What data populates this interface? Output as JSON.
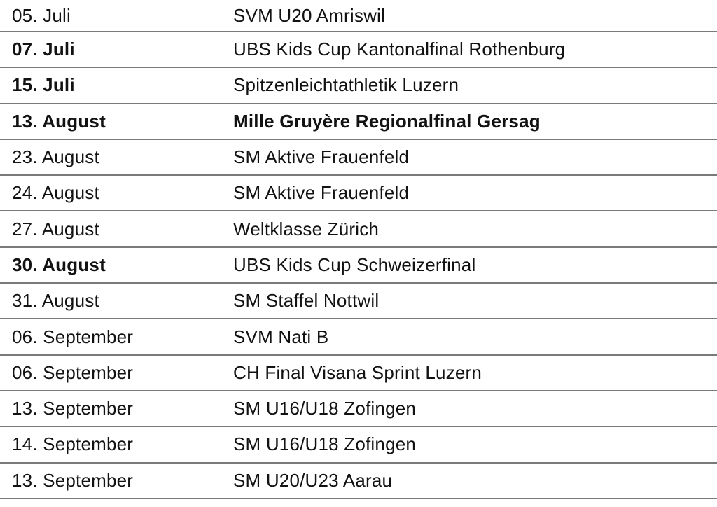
{
  "table": {
    "text_color": "#121212",
    "line_color": "#7a7a7a",
    "columns": [
      "date",
      "event"
    ],
    "rows": [
      {
        "date": "05. Juli",
        "event": "SVM U20 Amriswil",
        "date_bold": false,
        "event_bold": false
      },
      {
        "date": "07. Juli",
        "event": "UBS Kids Cup Kantonalfinal Rothenburg",
        "date_bold": true,
        "event_bold": false
      },
      {
        "date": "15. Juli",
        "event": "Spitzenleichtathletik Luzern",
        "date_bold": true,
        "event_bold": false
      },
      {
        "date": "13. August",
        "event": "Mille Gruyère Regionalfinal Gersag",
        "date_bold": true,
        "event_bold": true
      },
      {
        "date": "23. August",
        "event": "SM Aktive Frauenfeld",
        "date_bold": false,
        "event_bold": false
      },
      {
        "date": "24. August",
        "event": "SM Aktive Frauenfeld",
        "date_bold": false,
        "event_bold": false
      },
      {
        "date": "27. August",
        "event": "Weltklasse Zürich",
        "date_bold": false,
        "event_bold": false
      },
      {
        "date": "30. August",
        "event": "UBS Kids Cup Schweizerfinal",
        "date_bold": true,
        "event_bold": false
      },
      {
        "date": "31. August",
        "event": "SM Staffel Nottwil",
        "date_bold": false,
        "event_bold": false
      },
      {
        "date": "06. September",
        "event": "SVM Nati B",
        "date_bold": false,
        "event_bold": false
      },
      {
        "date": "06. September",
        "event": "CH Final Visana Sprint Luzern",
        "date_bold": false,
        "event_bold": false
      },
      {
        "date": "13. September",
        "event": "SM U16/U18 Zofingen",
        "date_bold": false,
        "event_bold": false
      },
      {
        "date": "14. September",
        "event": "SM U16/U18 Zofingen",
        "date_bold": false,
        "event_bold": false
      },
      {
        "date": "13. September",
        "event": "SM U20/U23 Aarau",
        "date_bold": false,
        "event_bold": false
      }
    ]
  }
}
